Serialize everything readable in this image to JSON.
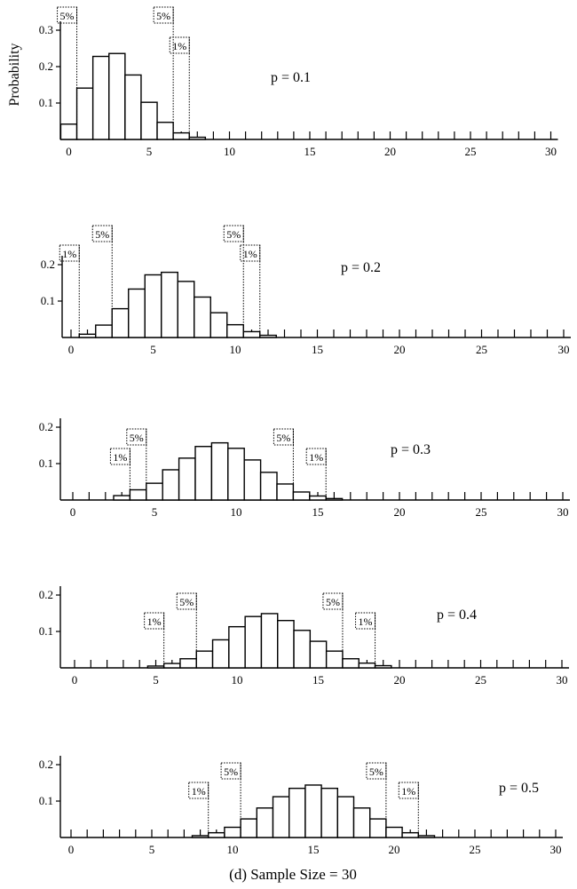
{
  "figure": {
    "caption": "(d) Sample Size = 30"
  },
  "chart_data": [
    {
      "type": "bar",
      "label": "p = 0.1",
      "ylabel": "Probability",
      "xlim": [
        0,
        30
      ],
      "ylim": [
        0,
        0.3
      ],
      "x_ticks": [
        0,
        5,
        10,
        15,
        20,
        25,
        30
      ],
      "y_ticks": [
        {
          "v": 0.1,
          "t": "0.1"
        },
        {
          "v": 0.2,
          "t": "0.2"
        },
        {
          "v": 0.3,
          "t": "0.3"
        }
      ],
      "x": [
        0,
        1,
        2,
        3,
        4,
        5,
        6,
        7,
        8
      ],
      "values": [
        0.042,
        0.141,
        0.228,
        0.236,
        0.177,
        0.102,
        0.047,
        0.018,
        0.006
      ],
      "markers": [
        {
          "label": "5%",
          "x": 0.5
        },
        {
          "label": "5%",
          "x": 6.5
        },
        {
          "label": "1%",
          "x": 7.5
        }
      ]
    },
    {
      "type": "bar",
      "label": "p = 0.2",
      "xlim": [
        0,
        30
      ],
      "ylim": [
        0,
        0.2
      ],
      "x_ticks": [
        0,
        5,
        10,
        15,
        20,
        25,
        30
      ],
      "y_ticks": [
        {
          "v": 0.1,
          "t": "0.1"
        },
        {
          "v": 0.2,
          "t": "0.2"
        }
      ],
      "x": [
        1,
        2,
        3,
        4,
        5,
        6,
        7,
        8,
        9,
        10,
        11,
        12
      ],
      "values": [
        0.009,
        0.034,
        0.079,
        0.133,
        0.172,
        0.179,
        0.154,
        0.111,
        0.068,
        0.035,
        0.016,
        0.006
      ],
      "markers": [
        {
          "label": "1%",
          "x": 0.5
        },
        {
          "label": "5%",
          "x": 2.5
        },
        {
          "label": "5%",
          "x": 10.5
        },
        {
          "label": "1%",
          "x": 11.5
        }
      ]
    },
    {
      "type": "bar",
      "label": "p = 0.3",
      "xlim": [
        0,
        30
      ],
      "ylim": [
        0,
        0.2
      ],
      "x_ticks": [
        0,
        5,
        10,
        15,
        20,
        25,
        30
      ],
      "y_ticks": [
        {
          "v": 0.1,
          "t": "0.1"
        },
        {
          "v": 0.2,
          "t": "0.2"
        }
      ],
      "x": [
        3,
        4,
        5,
        6,
        7,
        8,
        9,
        10,
        11,
        12,
        13,
        14,
        15,
        16
      ],
      "values": [
        0.012,
        0.028,
        0.046,
        0.083,
        0.115,
        0.147,
        0.157,
        0.142,
        0.11,
        0.076,
        0.044,
        0.022,
        0.011,
        0.004
      ],
      "markers": [
        {
          "label": "1%",
          "x": 3.5
        },
        {
          "label": "5%",
          "x": 4.5
        },
        {
          "label": "5%",
          "x": 13.5
        },
        {
          "label": "1%",
          "x": 15.5
        }
      ]
    },
    {
      "type": "bar",
      "label": "p = 0.4",
      "xlim": [
        0,
        30
      ],
      "ylim": [
        0,
        0.2
      ],
      "x_ticks": [
        0,
        5,
        10,
        15,
        20,
        25,
        30
      ],
      "y_ticks": [
        {
          "v": 0.1,
          "t": "0.1"
        },
        {
          "v": 0.2,
          "t": "0.2"
        }
      ],
      "x": [
        5,
        6,
        7,
        8,
        9,
        10,
        11,
        12,
        13,
        14,
        15,
        16,
        17,
        18,
        19
      ],
      "values": [
        0.005,
        0.012,
        0.025,
        0.046,
        0.077,
        0.113,
        0.141,
        0.149,
        0.13,
        0.103,
        0.073,
        0.046,
        0.025,
        0.013,
        0.006
      ],
      "markers": [
        {
          "label": "1%",
          "x": 5.5
        },
        {
          "label": "5%",
          "x": 7.5
        },
        {
          "label": "5%",
          "x": 16.5
        },
        {
          "label": "1%",
          "x": 18.5
        }
      ]
    },
    {
      "type": "bar",
      "label": "p = 0.5",
      "xlim": [
        0,
        30
      ],
      "ylim": [
        0,
        0.2
      ],
      "x_ticks": [
        0,
        5,
        10,
        15,
        20,
        25,
        30
      ],
      "y_ticks": [
        {
          "v": 0.1,
          "t": "0.1"
        },
        {
          "v": 0.2,
          "t": "0.2"
        }
      ],
      "x": [
        8,
        9,
        10,
        11,
        12,
        13,
        14,
        15,
        16,
        17,
        18,
        19,
        20,
        21,
        22
      ],
      "values": [
        0.005,
        0.013,
        0.028,
        0.051,
        0.081,
        0.112,
        0.135,
        0.144,
        0.135,
        0.112,
        0.081,
        0.051,
        0.028,
        0.013,
        0.005
      ],
      "markers": [
        {
          "label": "1%",
          "x": 8.5
        },
        {
          "label": "5%",
          "x": 10.5
        },
        {
          "label": "5%",
          "x": 19.5
        },
        {
          "label": "1%",
          "x": 21.5
        }
      ]
    }
  ]
}
